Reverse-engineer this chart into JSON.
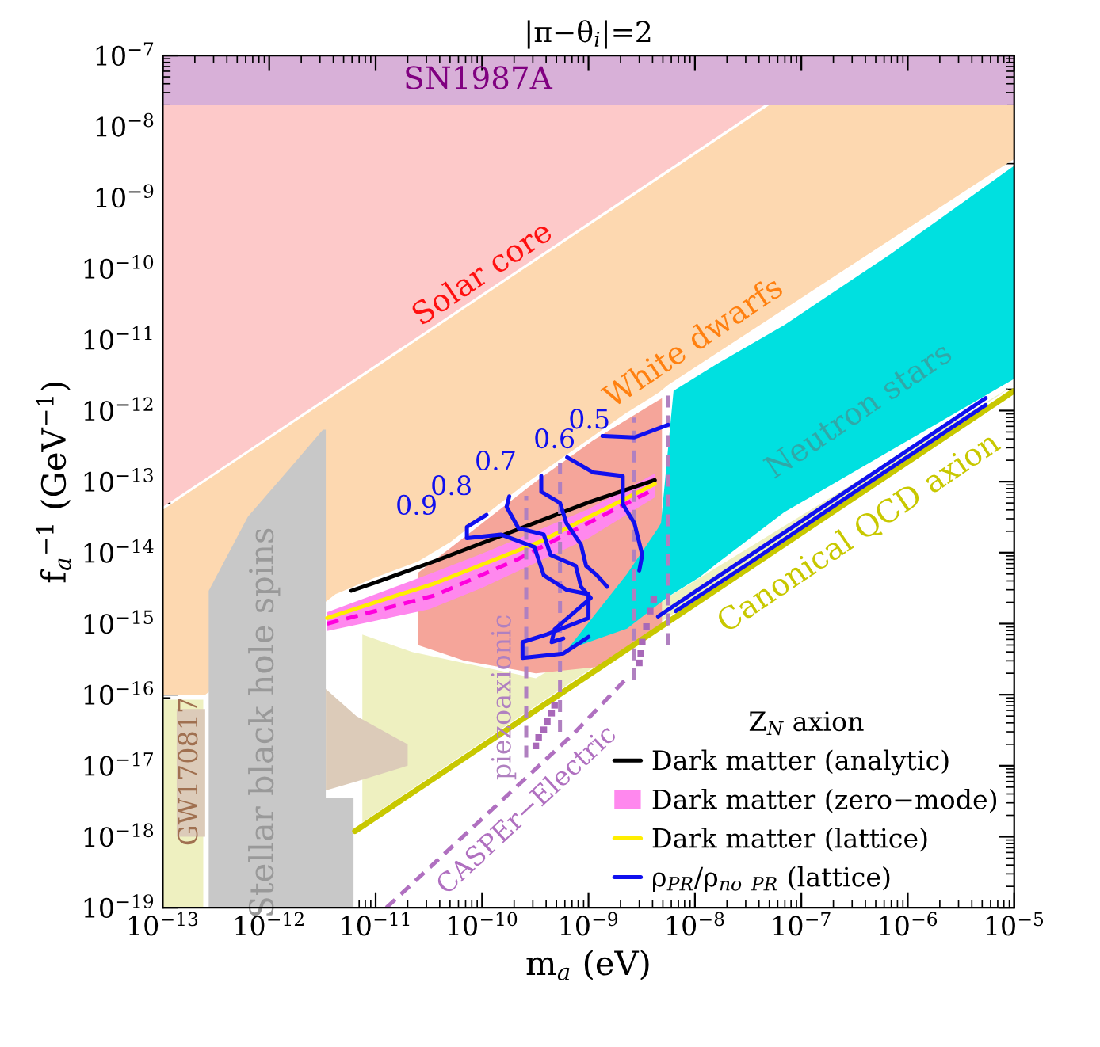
{
  "chart_data": {
    "type": "area",
    "title": "|π−θ$_{i}$|=2",
    "xlabel": "m$_{a}$ (eV)",
    "ylabel": "f$_{a}$$^{−1}$ (GeV$^{−1}$)",
    "legend_title": "Z$_{N}$ axion",
    "legend": "bottom right",
    "grid": false,
    "log": "xy",
    "xlim": [
      1e-13,
      1e-05
    ],
    "ylim": [
      1e-19,
      1e-07
    ],
    "xticks": [
      {
        "value": 1e-13,
        "label": "10$^{−13}$"
      },
      {
        "value": 1e-12,
        "label": "10$^{−12}$"
      },
      {
        "value": 1e-11,
        "label": "10$^{−11}$"
      },
      {
        "value": 1e-10,
        "label": "10$^{−10}$"
      },
      {
        "value": 1e-09,
        "label": "10$^{−9}$"
      },
      {
        "value": 1e-08,
        "label": "10$^{−8}$"
      },
      {
        "value": 1e-07,
        "label": "10$^{−7}$"
      },
      {
        "value": 1e-06,
        "label": "10$^{−6}$"
      },
      {
        "value": 1e-05,
        "label": "10$^{−5}$"
      }
    ],
    "yticks": [
      {
        "value": 1e-19,
        "label": "10$^{−19}$"
      },
      {
        "value": 1e-18,
        "label": "10$^{−18}$"
      },
      {
        "value": 1e-17,
        "label": "10$^{−17}$"
      },
      {
        "value": 1e-16,
        "label": "10$^{−16}$"
      },
      {
        "value": 1e-15,
        "label": "10$^{−15}$"
      },
      {
        "value": 1e-14,
        "label": "10$^{−14}$"
      },
      {
        "value": 1e-13,
        "label": "10$^{−13}$"
      },
      {
        "value": 1e-12,
        "label": "10$^{−12}$"
      },
      {
        "value": 1e-11,
        "label": "10$^{−11}$"
      },
      {
        "value": 1e-10,
        "label": "10$^{−10}$"
      },
      {
        "value": 1e-09,
        "label": "10$^{−9}$"
      },
      {
        "value": 1e-08,
        "label": "10$^{−8}$"
      },
      {
        "value": 1e-07,
        "label": "10$^{−7}$"
      }
    ],
    "bands": [
      {
        "axis": "y",
        "from": 2e-08,
        "to": 1e-07,
        "label": "SN1987A",
        "color": "#d8b0d8"
      }
    ],
    "series": [
      {
        "color": "#fdd8b0",
        "x": [
          1e-13,
          1e-13,
          5e-08,
          1e-05,
          1e-05,
          5.6e-09,
          4.6e-09,
          2.2e-09,
          2.6e-10,
          5e-11,
          2.5e-11,
          1e-11,
          4.2e-12,
          2.5e-13
        ],
        "values": [
          1e-16,
          4e-14,
          2e-08,
          2e-08,
          3.5e-09,
          2.3e-12,
          1.8e-12,
          9e-13,
          9.5e-14,
          1.4e-14,
          7.5e-15,
          4.5e-15,
          2.6e-15,
          1e-16
        ]
      },
      {
        "color": "#fdc9c9",
        "x": [
          1e-13,
          1e-13,
          4.5e-08
        ],
        "values": [
          4.4e-14,
          2e-08,
          2e-08
        ]
      },
      {
        "color": "#eef0c0",
        "x": [
          1e-13,
          1e-13,
          2.4e-13,
          2.4e-13
        ],
        "values": [
          1e-19,
          8.5e-17,
          8.5e-17,
          1e-19
        ]
      },
      {
        "color": "#eef0c0",
        "x": [
          7.5e-12,
          1e-05,
          3.2e-10,
          2.2e-11,
          7.5e-12
        ],
        "values": [
          1.6e-18,
          2.3e-12,
          1.7e-16,
          4e-16,
          7e-16
        ]
      },
      {
        "color": "#dccbb9",
        "x": [
          1.35e-13,
          2.5e-13,
          2.5e-13,
          1.35e-13
        ],
        "values": [
          1e-18,
          1e-18,
          6.3e-17,
          6.3e-17
        ]
      },
      {
        "color": "#c8c8c8",
        "x": [
          2.7e-13,
          2.7e-13,
          6.3e-13,
          1.6e-12,
          3.2e-12,
          3.4e-12,
          3.4e-12,
          6.2e-12,
          6.2e-12
        ],
        "values": [
          1e-19,
          2.9e-15,
          3.2e-14,
          1.6e-13,
          5.4e-13,
          5.4e-13,
          3.5e-18,
          3.5e-18,
          1e-19
        ]
      },
      {
        "color": "#dccbb9",
        "x": [
          3.4e-12,
          6.6e-12,
          2e-11,
          2e-11,
          6.6e-12,
          3.4e-12
        ],
        "values": [
          1.2e-16,
          5e-17,
          2e-17,
          1e-17,
          6e-18,
          4.5e-18
        ]
      },
      {
        "color": "#f5a59a",
        "x": [
          2.5e-11,
          5e-11,
          3.2e-10,
          1.1e-09,
          4.9e-09,
          4.9e-09,
          1.35e-09,
          3.2e-10,
          6.8e-11,
          2.5e-11
        ],
        "values": [
          5.2e-15,
          1.15e-14,
          1e-13,
          3.8e-13,
          1.5e-12,
          1e-15,
          2.5e-16,
          2e-16,
          3e-16,
          5e-16
        ]
      },
      {
        "type": "line",
        "name": "Dark matter (analytic)",
        "color": "#000000",
        "x": [
          5.9e-12,
          1e-11,
          3.6e-11,
          1e-09,
          4.2e-09
        ],
        "values": [
          2.9e-15,
          3.8e-15,
          7.6e-15,
          5.1e-14,
          1.05e-13
        ]
      },
      {
        "name": "Dark matter (zero−mode)",
        "color": "#ff88ee",
        "x": [
          3.5e-12,
          1e-11,
          3.2e-11,
          1e-10,
          3.2e-10,
          1e-09,
          4.2e-09,
          4.2e-09,
          1e-09,
          1e-10,
          3.2e-11,
          1e-11,
          3.5e-12
        ],
        "values": [
          1.45e-15,
          2.6e-15,
          5e-15,
          9.7e-15,
          2e-14,
          4.1e-14,
          1.3e-13,
          6e-14,
          1.6e-14,
          3.2e-15,
          1.6e-15,
          1.1e-15,
          7.9e-16
        ]
      },
      {
        "type": "line",
        "name": "Dark matter (lattice)",
        "color": "#ffee00",
        "x": [
          3.5e-12,
          1e-11,
          3.6e-11,
          3.4e-10,
          4.2e-09
        ],
        "values": [
          1.2e-15,
          2e-15,
          3.7e-15,
          1.4e-14,
          9.3e-14
        ]
      },
      {
        "type": "line",
        "color": "#ff00dd",
        "line_style": "dashed",
        "x": [
          3.5e-12,
          3.6e-11,
          2.1e-10,
          4.2e-09
        ],
        "values": [
          1e-15,
          2.5e-15,
          7.9e-15,
          7.9e-14
        ]
      },
      {
        "type": "line",
        "color": "#c8c800",
        "x": [
          6.4e-12,
          1e-05
        ],
        "values": [
          1.2e-18,
          1.9e-12
        ]
      },
      {
        "type": "line",
        "color": "#b070c0",
        "line_style": "dashed",
        "x": [
          1.26e-11,
          7.2e-10,
          2.2e-09
        ],
        "values": [
          1e-19,
          2.8e-17,
          1.6e-16
        ]
      },
      {
        "type": "line",
        "color": "#b080c0",
        "line_style": "dashed",
        "x": [
          2.6e-10,
          2.6e-10
        ],
        "values": [
          1.3e-17,
          6.3e-14
        ]
      },
      {
        "type": "line",
        "color": "#b080c0",
        "line_style": "dashed",
        "x": [
          5.4e-10,
          5.4e-10
        ],
        "values": [
          3e-17,
          2.2e-13
        ]
      },
      {
        "type": "line",
        "color": "#b080c0",
        "line_style": "dashed",
        "x": [
          2.7e-09,
          2.7e-09
        ],
        "values": [
          1.6e-16,
          8e-13
        ]
      },
      {
        "type": "line",
        "color": "#b080c0",
        "line_style": "dashed",
        "x": [
          5.6e-09,
          5.6e-09
        ],
        "values": [
          5e-16,
          1.9e-12
        ]
      },
      {
        "color": "#00e0e0",
        "x": [
          6.3e-10,
          2.3e-09,
          4.5e-09,
          4.8e-09,
          6.3e-09,
          1.1e-08,
          1.6e-08,
          6.9e-08,
          6.9e-07,
          1e-05,
          1e-05,
          6.9e-08,
          1.6e-08,
          1.1e-08,
          5.6e-09,
          2.3e-09
        ],
        "values": [
          4.3e-16,
          5e-15,
          2.2e-14,
          2.6e-14,
          1.9e-12,
          3.2e-12,
          4.5e-12,
          1.6e-11,
          1.6e-10,
          2.8e-09,
          2.8e-12,
          3.7e-14,
          7e-15,
          4.5e-15,
          2.4e-15,
          8.5e-16
        ]
      },
      {
        "type": "line",
        "name": "ρ$_{PR}$/ρ$_{no}$ $_{PR}$ (lattice)",
        "color": "#1010ee",
        "x": [
          1.1e-10,
          7.2e-11,
          7.2e-11,
          1.5e-10,
          3.1e-10,
          3.8e-10,
          6.2e-10,
          1e-09,
          1e-09,
          4.1e-10,
          2.4e-10,
          2.4e-10,
          5.8e-10,
          1e-09
        ],
        "values": [
          3.4e-14,
          2.3e-14,
          1.6e-14,
          1.8e-14,
          1.2e-14,
          4.8e-15,
          3e-15,
          2.6e-15,
          1.2e-15,
          7.1e-16,
          5.5e-16,
          3.3e-16,
          3.8e-16,
          6.5e-16
        ]
      },
      {
        "type": "line",
        "color": "#1010ee",
        "x": [
          1.8e-10,
          1.7e-10,
          2.2e-10,
          3.8e-10,
          4.4e-10,
          7.6e-10,
          8.5e-10,
          1.05e-09,
          4.8e-10,
          4.5e-10,
          5.8e-10
        ],
        "values": [
          6.2e-14,
          4.4e-14,
          2.2e-14,
          1.8e-14,
          9.3e-15,
          6.5e-15,
          3.3e-15,
          2.3e-15,
          8.3e-16,
          5.5e-16,
          6.2e-16
        ]
      },
      {
        "type": "line",
        "color": "#1010ee",
        "x": [
          3.6e-10,
          3.6e-10,
          5.4e-10,
          6.2e-10,
          8.5e-10,
          9.5e-10,
          1.2e-09,
          1.5e-09
        ],
        "values": [
          1.2e-13,
          7.2e-14,
          5e-14,
          2.6e-14,
          1.3e-14,
          6.5e-15,
          4.8e-15,
          3.3e-15
        ]
      },
      {
        "type": "line",
        "color": "#1010ee",
        "x": [
          6.3e-10,
          1.1e-09,
          2.1e-09,
          2.1e-09,
          2.7e-09,
          3.2e-09,
          3e-09
        ],
        "values": [
          2.2e-13,
          1.35e-13,
          1.2e-13,
          4.8e-14,
          2.6e-14,
          9.3e-15,
          5.6e-15
        ]
      },
      {
        "type": "line",
        "color": "#1010ee",
        "x": [
          1.35e-09,
          2.7e-09,
          5.6e-09
        ],
        "values": [
          4.4e-13,
          4.2e-13,
          6.3e-13
        ]
      },
      {
        "type": "line",
        "color": "#1010ee",
        "x": [
          4.5e-09,
          1.05e-08,
          8.3e-08,
          6.5e-07,
          5.4e-06
        ],
        "values": [
          1.26e-15,
          2.95e-15,
          2.3e-14,
          1.8e-13,
          1.5e-12
        ]
      },
      {
        "type": "line",
        "color": "#1010ee",
        "x": [
          6.6e-09,
          3e-08,
          3.2e-07,
          2.6e-06,
          5.4e-06
        ],
        "values": [
          1.5e-15,
          6.6e-15,
          7.2e-14,
          5.8e-13,
          1.2e-12
        ]
      },
      {
        "type": "scatter",
        "color": "#a868b8",
        "marker": "square",
        "x": [
          3.4e-10,
          4.1e-10,
          4.8e-10,
          3.2e-10,
          3.8e-10,
          4.5e-10,
          3e-09,
          3.2e-09,
          3.5e-09,
          3.8e-09,
          4.1e-09,
          3.1e-09
        ],
        "values": [
          2.5e-17,
          4.2e-17,
          7.1e-17,
          1.9e-17,
          3.2e-17,
          5.5e-17,
          2.8e-16,
          5.5e-16,
          9.1e-16,
          1.5e-15,
          2.2e-15,
          3.8e-16
        ]
      }
    ],
    "annotations": [
      "Solar core",
      "White dwarfs",
      "Neutron stars",
      "Canonical QCD axion",
      "Stellar black hole spins",
      "GW170817",
      "piezoaxionic",
      "CASPEr−Electric",
      "0.9",
      "0.8",
      "0.7",
      "0.6",
      "0.5"
    ]
  }
}
